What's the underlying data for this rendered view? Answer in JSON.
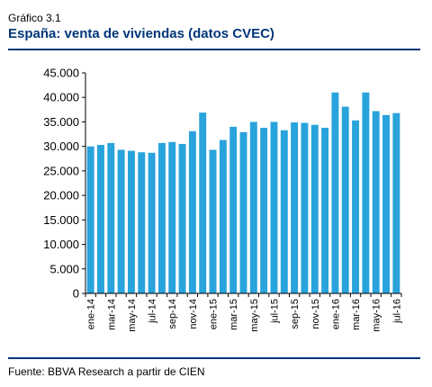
{
  "header": {
    "overline": "Gráfico 3.1",
    "title": "España: venta de viviendas (datos CVEC)"
  },
  "footer": {
    "source": "Fuente: BBVA Research a partir de CIEN"
  },
  "colors": {
    "bar": "#29a3dc",
    "accent": "#00367a"
  },
  "chart_data": {
    "type": "bar",
    "title": "España: venta de viviendas (datos CVEC)",
    "xlabel": "",
    "ylabel": "",
    "ylim": [
      0,
      45000
    ],
    "yticks": [
      "0",
      "5.000",
      "10.000",
      "15.000",
      "20.000",
      "25.000",
      "30.000",
      "35.000",
      "40.000",
      "45.000"
    ],
    "grid": false,
    "legend": "none",
    "categories": [
      "ene-14",
      "feb-14",
      "mar-14",
      "abr-14",
      "may-14",
      "jun-14",
      "jul-14",
      "ago-14",
      "sep-14",
      "oct-14",
      "nov-14",
      "dic-14",
      "ene-15",
      "feb-15",
      "mar-15",
      "abr-15",
      "may-15",
      "jun-15",
      "jul-15",
      "ago-15",
      "sep-15",
      "oct-15",
      "nov-15",
      "dic-15",
      "ene-16",
      "feb-16",
      "mar-16",
      "abr-16",
      "may-16",
      "jun-16",
      "jul-16"
    ],
    "tick_labels": [
      "ene-14",
      "mar-14",
      "may-14",
      "jul-14",
      "sep-14",
      "nov-14",
      "ene-15",
      "mar-15",
      "may-15",
      "jul-15",
      "sep-15",
      "nov-15",
      "ene-16",
      "mar-16",
      "may-16",
      "jul-16"
    ],
    "values": [
      30000,
      30300,
      30700,
      29300,
      29100,
      28800,
      28700,
      30700,
      30900,
      30500,
      33100,
      36900,
      29300,
      31300,
      34000,
      32900,
      35000,
      33800,
      35000,
      33300,
      34900,
      34800,
      34400,
      33800,
      41000,
      38100,
      35300,
      41000,
      37200,
      36400,
      36800
    ]
  }
}
